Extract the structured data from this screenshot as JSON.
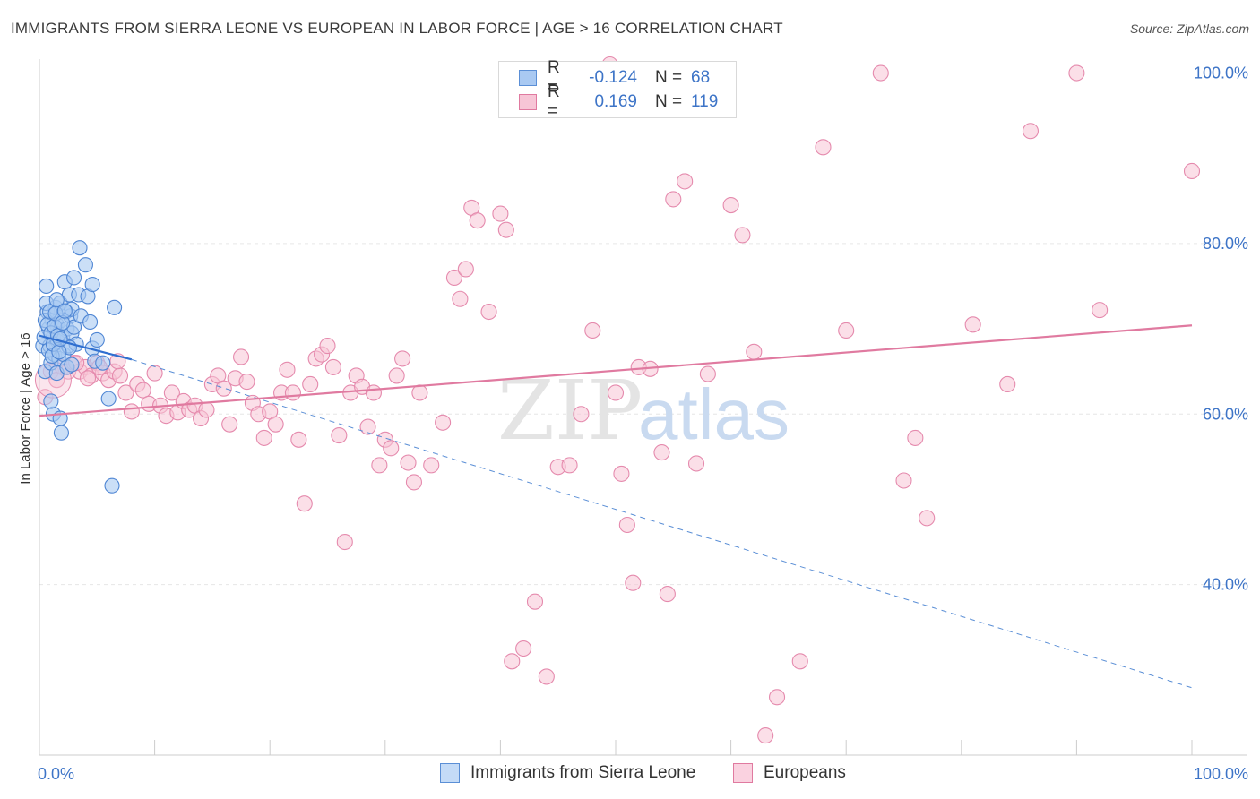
{
  "title": "IMMIGRANTS FROM SIERRA LEONE VS EUROPEAN IN LABOR FORCE | AGE > 16 CORRELATION CHART",
  "source": "Source: ZipAtlas.com",
  "colors": {
    "blue": "#5b8fd6",
    "blue_fill": "#a9c9f2",
    "pink": "#e07aa0",
    "pink_fill": "#f7c5d6",
    "axis_text": "#3d74c7"
  },
  "legend": {
    "rows": [
      {
        "r_label": "R =",
        "r_value": "-0.124",
        "n_label": "N =",
        "n_value": "68"
      },
      {
        "r_label": "R =",
        "r_value": "0.169",
        "n_label": "N =",
        "n_value": "119"
      }
    ]
  },
  "bottom_legend": {
    "series1": "Immigrants from Sierra Leone",
    "series2": "Europeans"
  },
  "watermark": {
    "zip": "ZIP",
    "atlas": "atlas"
  },
  "chart_data": {
    "type": "scatter",
    "ylabel": "In Labor Force | Age > 16",
    "xlabel": "",
    "xlim": [
      0,
      100
    ],
    "ylim": [
      20,
      101
    ],
    "x_tick_labels": [
      "0.0%",
      "100.0%"
    ],
    "y_ticks": [
      {
        "value": 40,
        "label": "40.0%"
      },
      {
        "value": 60,
        "label": "60.0%"
      },
      {
        "value": 80,
        "label": "80.0%"
      },
      {
        "value": 100,
        "label": "100.0%"
      }
    ],
    "series": [
      {
        "name": "Immigrants from Sierra Leone",
        "color": "#5b8fd6",
        "points": [
          [
            0.3,
            68
          ],
          [
            0.5,
            65
          ],
          [
            0.6,
            75
          ],
          [
            0.7,
            72
          ],
          [
            0.8,
            70
          ],
          [
            0.9,
            68
          ],
          [
            1.0,
            66
          ],
          [
            1.1,
            71
          ],
          [
            1.2,
            69
          ],
          [
            1.3,
            67
          ],
          [
            1.4,
            72.5
          ],
          [
            1.5,
            70.5
          ],
          [
            1.6,
            68.5
          ],
          [
            1.7,
            66.5
          ],
          [
            1.8,
            73
          ],
          [
            1.9,
            71
          ],
          [
            2.0,
            69
          ],
          [
            2.1,
            67
          ],
          [
            2.2,
            75.5
          ],
          [
            2.3,
            72
          ],
          [
            2.4,
            70
          ],
          [
            2.5,
            68
          ],
          [
            2.6,
            74
          ],
          [
            2.7,
            71.5
          ],
          [
            2.8,
            69.5
          ],
          [
            1.2,
            60
          ],
          [
            1.8,
            59.5
          ],
          [
            1.9,
            57.8
          ],
          [
            2.8,
            72.3
          ],
          [
            3.0,
            70.2
          ],
          [
            3.2,
            68.2
          ],
          [
            3.4,
            74
          ],
          [
            3.6,
            71.5
          ],
          [
            2.6,
            67.8
          ],
          [
            1.5,
            64.8
          ],
          [
            3.5,
            79.5
          ],
          [
            4.0,
            77.5
          ],
          [
            4.2,
            73.8
          ],
          [
            4.4,
            70.8
          ],
          [
            4.6,
            67.7
          ],
          [
            4.8,
            66.2
          ],
          [
            5.0,
            68.7
          ],
          [
            6.5,
            72.5
          ],
          [
            0.4,
            69
          ],
          [
            0.5,
            71
          ],
          [
            0.6,
            73
          ],
          [
            0.7,
            70.5
          ],
          [
            0.8,
            67.5
          ],
          [
            0.9,
            72
          ],
          [
            1.0,
            69.5
          ],
          [
            1.1,
            66.8
          ],
          [
            1.2,
            68.2
          ],
          [
            1.3,
            70.3
          ],
          [
            1.4,
            71.8
          ],
          [
            1.5,
            73.4
          ],
          [
            1.6,
            69.2
          ],
          [
            1.7,
            67.3
          ],
          [
            1.8,
            68.8
          ],
          [
            2.0,
            70.7
          ],
          [
            2.2,
            72.1
          ],
          [
            2.4,
            65.5
          ],
          [
            2.8,
            65.8
          ],
          [
            6.0,
            61.8
          ],
          [
            6.3,
            51.6
          ],
          [
            1.0,
            61.5
          ],
          [
            3.0,
            76
          ],
          [
            5.5,
            66
          ],
          [
            4.6,
            75.2
          ]
        ],
        "trend": {
          "x0": 0,
          "y0": 69.2,
          "x1": 8,
          "y1": 66.4,
          "dashed_to_x": 100,
          "dashed_to_y": 27.9
        }
      },
      {
        "name": "Europeans",
        "color": "#e07aa0",
        "points": [
          [
            0.5,
            62
          ],
          [
            1.0,
            65
          ],
          [
            1.5,
            64
          ],
          [
            2.0,
            65.5
          ],
          [
            2.5,
            65
          ],
          [
            3.0,
            66
          ],
          [
            3.5,
            65
          ],
          [
            4.0,
            65.5
          ],
          [
            4.5,
            64.5
          ],
          [
            5.0,
            66
          ],
          [
            5.5,
            64.8
          ],
          [
            6.0,
            64
          ],
          [
            6.5,
            65
          ],
          [
            7.0,
            64.5
          ],
          [
            7.5,
            62.5
          ],
          [
            8.0,
            60.3
          ],
          [
            8.5,
            63.5
          ],
          [
            9.0,
            62.8
          ],
          [
            9.5,
            61.2
          ],
          [
            10.0,
            64.8
          ],
          [
            10.5,
            61
          ],
          [
            11.0,
            59.8
          ],
          [
            11.5,
            62.5
          ],
          [
            12.0,
            60.2
          ],
          [
            12.5,
            61.5
          ],
          [
            13.0,
            60.5
          ],
          [
            13.5,
            61
          ],
          [
            14.0,
            59.5
          ],
          [
            14.5,
            60.5
          ],
          [
            15.0,
            63.5
          ],
          [
            15.5,
            64.5
          ],
          [
            16.0,
            63
          ],
          [
            16.5,
            58.8
          ],
          [
            17.0,
            64.2
          ],
          [
            17.5,
            66.7
          ],
          [
            18.0,
            63.8
          ],
          [
            18.5,
            61.3
          ],
          [
            19.0,
            60
          ],
          [
            19.5,
            57.2
          ],
          [
            20.0,
            60.3
          ],
          [
            20.5,
            58.8
          ],
          [
            21.0,
            62.5
          ],
          [
            21.5,
            65.2
          ],
          [
            22.0,
            62.5
          ],
          [
            22.5,
            57
          ],
          [
            23.0,
            49.5
          ],
          [
            23.5,
            63.5
          ],
          [
            24.0,
            66.5
          ],
          [
            24.5,
            67
          ],
          [
            25.0,
            68
          ],
          [
            25.5,
            65.5
          ],
          [
            26.0,
            57.5
          ],
          [
            26.5,
            45
          ],
          [
            27.0,
            62.5
          ],
          [
            27.5,
            64.5
          ],
          [
            28.0,
            63.2
          ],
          [
            28.5,
            58.5
          ],
          [
            29.0,
            62.5
          ],
          [
            29.5,
            54
          ],
          [
            30.0,
            57
          ],
          [
            30.5,
            56
          ],
          [
            31.0,
            64.5
          ],
          [
            31.5,
            66.5
          ],
          [
            32.0,
            54.3
          ],
          [
            32.5,
            52
          ],
          [
            33.0,
            62.5
          ],
          [
            34.0,
            54
          ],
          [
            35.0,
            59
          ],
          [
            36.0,
            76
          ],
          [
            36.5,
            73.5
          ],
          [
            37.0,
            77
          ],
          [
            37.5,
            84.2
          ],
          [
            38.0,
            82.7
          ],
          [
            39.0,
            72
          ],
          [
            40.0,
            83.5
          ],
          [
            40.5,
            81.6
          ],
          [
            41.0,
            31
          ],
          [
            42.0,
            32.5
          ],
          [
            43.0,
            38
          ],
          [
            44.0,
            29.2
          ],
          [
            45.0,
            53.8
          ],
          [
            46.0,
            54
          ],
          [
            47.0,
            60
          ],
          [
            48.0,
            69.8
          ],
          [
            49.5,
            101
          ],
          [
            50.0,
            62.5
          ],
          [
            50.5,
            53
          ],
          [
            51.0,
            47
          ],
          [
            51.5,
            40.2
          ],
          [
            52.0,
            65.5
          ],
          [
            53.0,
            65.3
          ],
          [
            54.0,
            55.5
          ],
          [
            54.5,
            38.9
          ],
          [
            55.0,
            85.2
          ],
          [
            56.0,
            87.3
          ],
          [
            57.0,
            54.2
          ],
          [
            58.0,
            64.7
          ],
          [
            60.0,
            84.5
          ],
          [
            61.0,
            81
          ],
          [
            62.0,
            67.3
          ],
          [
            63.0,
            22.3
          ],
          [
            64.0,
            26.8
          ],
          [
            66.0,
            31
          ],
          [
            68.0,
            91.3
          ],
          [
            70.0,
            69.8
          ],
          [
            73.0,
            100
          ],
          [
            75.0,
            52.2
          ],
          [
            76.0,
            57.2
          ],
          [
            77.0,
            47.8
          ],
          [
            81.0,
            70.5
          ],
          [
            84.0,
            63.5
          ],
          [
            86.0,
            93.2
          ],
          [
            90.0,
            100
          ],
          [
            92.0,
            72.2
          ],
          [
            100.0,
            88.5
          ],
          [
            3.2,
            66
          ],
          [
            4.2,
            64.2
          ],
          [
            5.2,
            65.5
          ],
          [
            6.8,
            66.2
          ]
        ],
        "trend": {
          "x0": 0,
          "y0": 59.8,
          "x1": 100,
          "y1": 70.4
        }
      }
    ]
  }
}
